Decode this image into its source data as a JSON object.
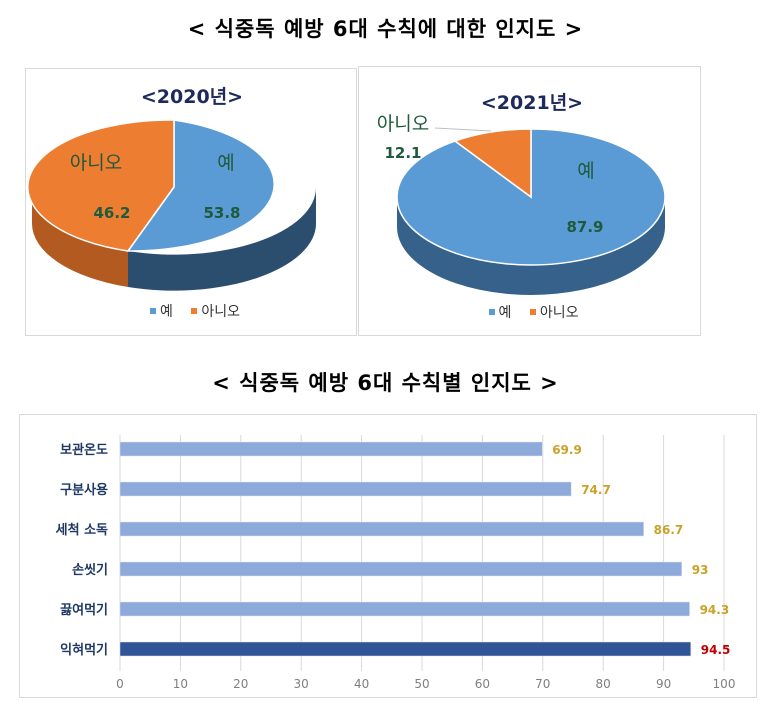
{
  "titles": {
    "top": "< 식중독 예방 6대 수칙에 대한 인지도 >",
    "bottom": "< 식중독 예방 6대 수칙별 인지도 >"
  },
  "colors": {
    "yes": "#5b9bd5",
    "yes_side": "#2e5577",
    "no": "#ed7d31",
    "no_side": "#a9531d",
    "bar": "#8eaadb",
    "bar_highlight": "#2f5597",
    "value_label": "#c9a227",
    "value_highlight": "#c00000",
    "grid": "#d9d9d9"
  },
  "pie2020": {
    "title": "<2020년>",
    "slices": [
      {
        "label": "예",
        "value": "53.8"
      },
      {
        "label": "아니오",
        "value": "46.2"
      }
    ],
    "legend": {
      "yes": "예",
      "no": "아니오"
    }
  },
  "pie2021": {
    "title": "<2021년>",
    "slices": [
      {
        "label": "예",
        "value": "87.9"
      },
      {
        "label": "아니오",
        "value": "12.1"
      }
    ],
    "legend": {
      "yes": "예",
      "no": "아니오"
    }
  },
  "bar_axis_ticks": [
    "0",
    "10",
    "20",
    "30",
    "40",
    "50",
    "60",
    "70",
    "80",
    "90",
    "100"
  ],
  "chart_data": [
    {
      "type": "pie",
      "title": "<2020년>",
      "categories": [
        "예",
        "아니오"
      ],
      "values": [
        53.8,
        46.2
      ],
      "legend": [
        "예",
        "아니오"
      ],
      "legend_position": "bottom"
    },
    {
      "type": "pie",
      "title": "<2021년>",
      "categories": [
        "예",
        "아니오"
      ],
      "values": [
        87.9,
        12.1
      ],
      "legend": [
        "예",
        "아니오"
      ],
      "legend_position": "bottom"
    },
    {
      "type": "bar",
      "orientation": "horizontal",
      "title": "< 식중독 예방 6대 수칙별 인지도 >",
      "categories": [
        "보관온도",
        "구분사용",
        "세척 소독",
        "손씻기",
        "끓여먹기",
        "익혀먹기"
      ],
      "values": [
        69.9,
        74.7,
        86.7,
        93,
        94.3,
        94.5
      ],
      "value_labels": [
        "69.9",
        "74.7",
        "86.7",
        "93",
        "94.3",
        "94.5"
      ],
      "xlim": [
        0,
        100
      ],
      "xticks": [
        0,
        10,
        20,
        30,
        40,
        50,
        60,
        70,
        80,
        90,
        100
      ],
      "grid": true,
      "highlight": "익혀먹기"
    }
  ]
}
